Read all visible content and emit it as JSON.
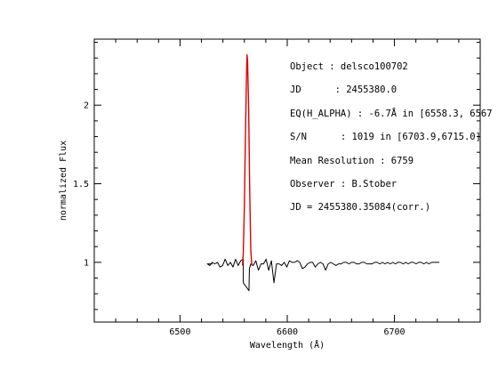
{
  "chart_data": {
    "type": "line",
    "xlabel": "Wavelength (Å)",
    "ylabel": "normalized Flux",
    "xlim": [
      6420,
      6780
    ],
    "ylim": [
      0.62,
      2.42
    ],
    "xticks": [
      {
        "value": 6500,
        "label": "6500"
      },
      {
        "value": 6600,
        "label": "6600"
      },
      {
        "value": 6700,
        "label": "6700"
      }
    ],
    "yticks": [
      {
        "value": 1,
        "label": "1"
      },
      {
        "value": 1.5,
        "label": "1.5"
      },
      {
        "value": 2,
        "label": "2"
      }
    ],
    "annotations": [
      "Object : delsco100702",
      "JD      : 2455380.0",
      "EQ(H_ALPHA) : -6.7Å in [6558.3, 6567",
      "S/N      : 1019 in [6703.9,6715.0]",
      "Mean Resolution : 6759",
      "Observer : B.Stober",
      "JD = 2455380.35084(corr.)"
    ],
    "series": [
      {
        "color": "#000000",
        "x": [
          6530.2,
          6525.4,
          6527.7,
          6530.1,
          6532.5,
          6534.9,
          6537.3,
          6539.7,
          6542.1,
          6544.6,
          6547.0,
          6549.4,
          6551.8,
          6554.2,
          6556.6,
          6559.0,
          6559.0,
          6564.3,
          6564.7,
          6566.0,
          6568.3,
          6570.7,
          6573.1,
          6575.5,
          6577.9,
          6580.3,
          6582.7,
          6585.2,
          6587.6,
          6590.0,
          6592.4,
          6594.8,
          6597.2,
          6599.6,
          6602.0,
          6604.4,
          6606.9,
          6609.3,
          6611.7,
          6614.1,
          6616.5,
          6618.9,
          6621.3,
          6623.7,
          6626.1,
          6628.5,
          6631.0,
          6633.4,
          6635.8,
          6638.2,
          6640.6,
          6643.0,
          6645.4,
          6647.8,
          6650.2,
          6652.7,
          6655.1,
          6657.5,
          6659.9,
          6662.3,
          6664.7,
          6667.1,
          6669.5,
          6671.9,
          6674.4,
          6676.8,
          6679.2,
          6681.6,
          6684.0,
          6686.4,
          6688.8,
          6691.2,
          6693.6,
          6696.0,
          6698.5,
          6700.9,
          6703.3,
          6705.7,
          6708.1,
          6710.5,
          6712.9,
          6715.3,
          6717.7,
          6720.2,
          6722.6,
          6725.0,
          6727.4,
          6729.8,
          6732.2,
          6734.6,
          6737.0,
          6739.4,
          6741.9
        ],
        "y": [
          0.99,
          0.99,
          0.98,
          1.0,
          0.99,
          1.0,
          0.97,
          0.98,
          1.02,
          0.98,
          1.0,
          0.97,
          1.02,
          0.98,
          1.01,
          1.02,
          0.87,
          0.82,
          0.96,
          0.99,
          0.98,
          1.01,
          0.95,
          0.99,
          0.99,
          1.02,
          0.95,
          1.01,
          0.87,
          0.99,
          0.99,
          0.98,
          1.0,
          0.97,
          1.01,
          1.0,
          1.0,
          1.01,
          1.0,
          0.96,
          0.97,
          0.99,
          1.0,
          1.0,
          0.97,
          0.99,
          1.0,
          0.99,
          0.95,
          0.99,
          1.0,
          0.99,
          0.98,
          0.99,
          0.99,
          1.0,
          1.0,
          0.99,
          1.0,
          1.0,
          0.99,
          0.99,
          1.0,
          1.0,
          0.99,
          0.99,
          0.99,
          1.0,
          1.0,
          0.99,
          1.0,
          0.99,
          1.0,
          0.99,
          1.0,
          0.99,
          1.0,
          1.0,
          0.99,
          1.0,
          0.99,
          1.0,
          1.0,
          0.99,
          1.0,
          1.0,
          0.99,
          1.0,
          0.99,
          1.0,
          1.0,
          1.0,
          1.0
        ]
      },
      {
        "color": "#e00000",
        "x": [
          6558.3,
          6559.0,
          6560.0,
          6561.0,
          6562.0,
          6562.5,
          6563.0,
          6564.0,
          6565.0,
          6566.0,
          6567.0
        ],
        "y": [
          0.98,
          1.06,
          1.35,
          1.8,
          2.19,
          2.32,
          2.28,
          1.98,
          1.45,
          1.08,
          0.98
        ]
      }
    ]
  }
}
